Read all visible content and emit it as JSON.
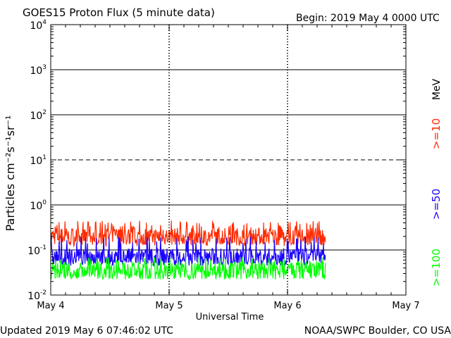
{
  "chart_data": {
    "type": "line",
    "title": "GOES15 Proton Flux (5 minute data)",
    "begin_label": "Begin: 2019 May 4 0000 UTC",
    "xlabel": "Universal Time",
    "ylabel": "Particles cm⁻²s⁻¹sr⁻¹",
    "yscale": "log",
    "ylim": [
      0.01,
      10000
    ],
    "xlim_days": [
      0,
      3
    ],
    "x_ticks": [
      {
        "value": 0,
        "label": "May 4"
      },
      {
        "value": 1,
        "label": "May 5"
      },
      {
        "value": 2,
        "label": "May 6"
      },
      {
        "value": 3,
        "label": "May 7"
      }
    ],
    "y_ticks": [
      {
        "exp": -2,
        "value": 0.01,
        "base": "10",
        "sup": "-2"
      },
      {
        "exp": -1,
        "value": 0.1,
        "base": "10",
        "sup": "-1"
      },
      {
        "exp": 0,
        "value": 1,
        "base": "10",
        "sup": "0"
      },
      {
        "exp": 1,
        "value": 10,
        "base": "10",
        "sup": "1"
      },
      {
        "exp": 2,
        "value": 100,
        "base": "10",
        "sup": "2"
      },
      {
        "exp": 3,
        "value": 1000,
        "base": "10",
        "sup": "3"
      },
      {
        "exp": 4,
        "value": 10000,
        "base": "10",
        "sup": "4"
      }
    ],
    "threshold_lines": [
      {
        "value": 0.1,
        "style": "solid"
      },
      {
        "value": 1,
        "style": "solid"
      },
      {
        "value": 10,
        "style": "dashed"
      },
      {
        "value": 100,
        "style": "solid"
      },
      {
        "value": 1000,
        "style": "solid"
      }
    ],
    "data_end_day": 2.32,
    "series": [
      {
        "name": ">=10",
        "color": "#ff2a00",
        "typical": 0.2,
        "low": 0.12,
        "high": 0.45
      },
      {
        "name": ">=50",
        "color": "#1a00ff",
        "typical": 0.07,
        "low": 0.045,
        "high": 0.2
      },
      {
        "name": ">=100",
        "color": "#00ff00",
        "typical": 0.035,
        "low": 0.022,
        "high": 0.07
      }
    ],
    "energy_unit": "MeV"
  },
  "footer": {
    "updated": "Updated 2019 May  6 07:46:02 UTC",
    "credit": "NOAA/SWPC Boulder, CO USA"
  }
}
